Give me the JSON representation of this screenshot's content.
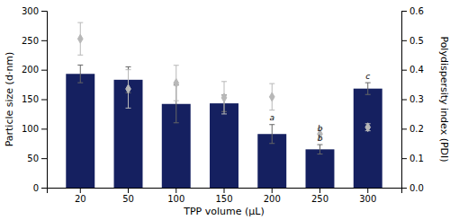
{
  "chart_data": {
    "type": "bar",
    "xlabel": "TPP volume (μL)",
    "ylabel": "Particle size (d·nm)",
    "y2label": "Polydispersity index (PDI)",
    "categories": [
      20,
      50,
      100,
      150,
      200,
      250,
      300
    ],
    "series": [
      {
        "type": "bar",
        "color": "#152060",
        "values": [
          193,
          183,
          142,
          143,
          91,
          65,
          168
        ],
        "errors": [
          15,
          22,
          32,
          14,
          16,
          8,
          10
        ]
      },
      {
        "type": "scatter",
        "axis": "y2",
        "color": "#b8b8b8",
        "marker": "diamond",
        "values": [
          0.505,
          0.335,
          0.355,
          0.305,
          0.308,
          0.182,
          0.205
        ],
        "errors": [
          0.055,
          0.065,
          0.06,
          0.055,
          0.045,
          0.018,
          0.012
        ]
      }
    ],
    "ylim": [
      0,
      300
    ],
    "yticks": [
      0,
      50,
      100,
      150,
      200,
      250,
      300
    ],
    "y2lim": [
      0,
      0.6
    ],
    "y2ticks": [
      {
        "value": 0,
        "label": "0.0"
      },
      0.1,
      0.2,
      0.3,
      0.4,
      0.5,
      0.6
    ],
    "annotations": [
      {
        "text": "a",
        "x": 200,
        "y": 113
      },
      {
        "text": "b",
        "x": 250,
        "y": 95
      },
      {
        "text": "b",
        "x": 250,
        "y": 77
      },
      {
        "text": "c",
        "x": 300,
        "y": 182
      }
    ]
  }
}
